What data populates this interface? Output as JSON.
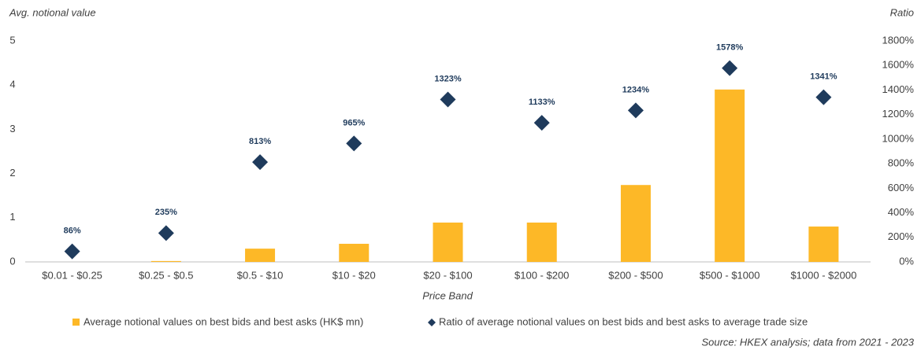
{
  "chart_data": {
    "type": "bar",
    "y_label": "Avg. notional value",
    "y2_label": "Ratio",
    "x_label": "Price Band",
    "source": "Source: HKEX analysis; data from 2021 - 2023",
    "categories": [
      "$0.01 - $0.25",
      "$0.25 - $0.5",
      "$0.5 - $10",
      "$10 - $20",
      "$20 - $100",
      "$100 - $200",
      "$200 - $500",
      "$500 - $1000",
      "$1000 - $2000"
    ],
    "series": [
      {
        "name": "Average notional values on best bids and best asks (HK$ mn)",
        "type": "bar",
        "color": "#fdb827",
        "values": [
          0,
          0.02,
          0.3,
          0.41,
          0.89,
          0.89,
          1.74,
          3.9,
          0.8
        ]
      },
      {
        "name": "Ratio of average notional values on best bids and best asks to average trade size",
        "type": "scatter",
        "axis": "y2",
        "color": "#1f3b5c",
        "values": [
          86,
          235,
          813,
          965,
          1323,
          1133,
          1234,
          1578,
          1341
        ],
        "value_labels": [
          "86%",
          "235%",
          "813%",
          "965%",
          "1323%",
          "1133%",
          "1234%",
          "1578%",
          "1341%"
        ]
      }
    ],
    "ylim": [
      0,
      5
    ],
    "yticks": [
      0,
      1,
      2,
      3,
      4,
      5
    ],
    "y2lim": [
      0,
      1800
    ],
    "y2ticks": [
      {
        "value": 0,
        "label": "0%"
      },
      {
        "value": 200,
        "label": "200%"
      },
      {
        "value": 400,
        "label": "400%"
      },
      {
        "value": 600,
        "label": "600%"
      },
      {
        "value": 800,
        "label": "800%"
      },
      {
        "value": 1000,
        "label": "1000%"
      },
      {
        "value": 1200,
        "label": "1200%"
      },
      {
        "value": 1400,
        "label": "1400%"
      },
      {
        "value": 1600,
        "label": "1600%"
      },
      {
        "value": 1800,
        "label": "1800%"
      }
    ],
    "grid": false,
    "legend": "bottom"
  }
}
